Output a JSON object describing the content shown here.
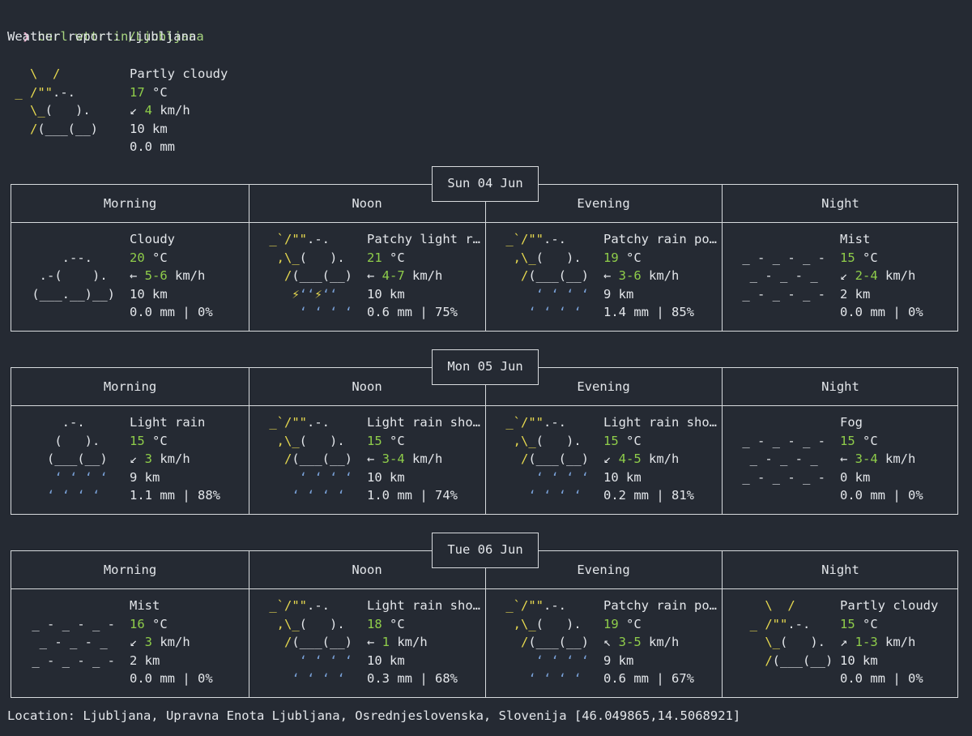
{
  "terminal": {
    "prompt_symbol": "❯",
    "command": "curl wttr.in/Ljubljana",
    "report_title": "Weather report: Ljubljana",
    "location_line": "Location: Ljubljana, Upravna Enota Ljubljana, Osrednjeslovenska, Slovenija [46.049865,14.5068921]"
  },
  "current": {
    "art": [
      [
        [
          "y",
          "   \\  /     "
        ]
      ],
      [
        [
          "y",
          " _ /\"\""
        ],
        [
          "w",
          ".-.   "
        ]
      ],
      [
        [
          "y",
          "   \\_"
        ],
        [
          "w",
          "(   ).  "
        ]
      ],
      [
        [
          "y",
          "   /"
        ],
        [
          "w",
          "(___(__) "
        ]
      ],
      [
        [
          "w",
          "            "
        ]
      ]
    ],
    "condition": "Partly cloudy",
    "temp": "17",
    "temp_unit": " °C",
    "wind_arrow": "↙",
    "wind": "4",
    "wind_unit": " km/h",
    "visibility": "10 km",
    "precip": "0.0 mm"
  },
  "days": [
    {
      "date": "Sun 04 Jun",
      "periods": [
        {
          "name": "Morning",
          "art": [
            [
              [
                "w",
                "            "
              ]
            ],
            [
              [
                "w",
                "     .--.   "
              ]
            ],
            [
              [
                "w",
                "  .-(    ). "
              ]
            ],
            [
              [
                "w",
                " (___.__)__)"
              ]
            ],
            [
              [
                "w",
                "            "
              ]
            ]
          ],
          "condition": "Cloudy",
          "temp": "20",
          "wind_arrow": "←",
          "wind": "5-6",
          "visibility": "10 km",
          "precip": "0.0 mm | 0%"
        },
        {
          "name": "Noon",
          "art": [
            [
              [
                "y",
                " _`/\"\""
              ],
              [
                "w",
                ".-.  "
              ]
            ],
            [
              [
                "y",
                "  ,\\_"
              ],
              [
                "w",
                "(   ). "
              ]
            ],
            [
              [
                "y",
                "   /"
              ],
              [
                "w",
                "(___(__)"
              ]
            ],
            [
              [
                "y",
                "    ⚡"
              ],
              [
                "b",
                "‘‘"
              ],
              [
                "y",
                "⚡"
              ],
              [
                "b",
                "‘‘"
              ]
            ],
            [
              [
                "b",
                "     ‘ ‘ ‘ ‘"
              ]
            ]
          ],
          "condition": "Patchy light r…",
          "temp": "21",
          "wind_arrow": "←",
          "wind": "4-7",
          "visibility": "10 km",
          "precip": "0.6 mm | 75%"
        },
        {
          "name": "Evening",
          "art": [
            [
              [
                "y",
                " _`/\"\""
              ],
              [
                "w",
                ".-.  "
              ]
            ],
            [
              [
                "y",
                "  ,\\_"
              ],
              [
                "w",
                "(   ). "
              ]
            ],
            [
              [
                "y",
                "   /"
              ],
              [
                "w",
                "(___(__)"
              ]
            ],
            [
              [
                "b",
                "     ‘ ‘ ‘ ‘"
              ]
            ],
            [
              [
                "b",
                "    ‘ ‘ ‘ ‘"
              ]
            ]
          ],
          "condition": "Patchy rain po…",
          "temp": "19",
          "wind_arrow": "←",
          "wind": "3-6",
          "visibility": "9 km",
          "precip": "1.4 mm | 85%"
        },
        {
          "name": "Night",
          "art": [
            [
              [
                "w",
                "            "
              ]
            ],
            [
              [
                "w",
                " _ - _ - _ - "
              ]
            ],
            [
              [
                "w",
                "  _ - _ - _ "
              ]
            ],
            [
              [
                "w",
                " _ - _ - _ - "
              ]
            ],
            [
              [
                "w",
                "            "
              ]
            ]
          ],
          "condition": "Mist",
          "temp": "15",
          "wind_arrow": "↙",
          "wind": "2-4",
          "visibility": "2 km",
          "precip": "0.0 mm | 0%"
        }
      ]
    },
    {
      "date": "Mon 05 Jun",
      "periods": [
        {
          "name": "Morning",
          "art": [
            [
              [
                "w",
                "     .-.    "
              ]
            ],
            [
              [
                "w",
                "    (   ).  "
              ]
            ],
            [
              [
                "w",
                "   (___(__) "
              ]
            ],
            [
              [
                "b",
                "    ‘ ‘ ‘ ‘ "
              ]
            ],
            [
              [
                "b",
                "   ‘ ‘ ‘ ‘  "
              ]
            ]
          ],
          "condition": "Light rain",
          "temp": "15",
          "wind_arrow": "↙",
          "wind": "3",
          "visibility": "9 km",
          "precip": "1.1 mm | 88%"
        },
        {
          "name": "Noon",
          "art": [
            [
              [
                "y",
                " _`/\"\""
              ],
              [
                "w",
                ".-.  "
              ]
            ],
            [
              [
                "y",
                "  ,\\_"
              ],
              [
                "w",
                "(   ). "
              ]
            ],
            [
              [
                "y",
                "   /"
              ],
              [
                "w",
                "(___(__)"
              ]
            ],
            [
              [
                "b",
                "     ‘ ‘ ‘ ‘"
              ]
            ],
            [
              [
                "b",
                "    ‘ ‘ ‘ ‘"
              ]
            ]
          ],
          "condition": "Light rain sho…",
          "temp": "15",
          "wind_arrow": "←",
          "wind": "3-4",
          "visibility": "10 km",
          "precip": "1.0 mm | 74%"
        },
        {
          "name": "Evening",
          "art": [
            [
              [
                "y",
                " _`/\"\""
              ],
              [
                "w",
                ".-.  "
              ]
            ],
            [
              [
                "y",
                "  ,\\_"
              ],
              [
                "w",
                "(   ). "
              ]
            ],
            [
              [
                "y",
                "   /"
              ],
              [
                "w",
                "(___(__)"
              ]
            ],
            [
              [
                "b",
                "     ‘ ‘ ‘ ‘"
              ]
            ],
            [
              [
                "b",
                "    ‘ ‘ ‘ ‘"
              ]
            ]
          ],
          "condition": "Light rain sho…",
          "temp": "15",
          "wind_arrow": "↙",
          "wind": "4-5",
          "visibility": "10 km",
          "precip": "0.2 mm | 81%"
        },
        {
          "name": "Night",
          "art": [
            [
              [
                "w",
                "            "
              ]
            ],
            [
              [
                "w",
                " _ - _ - _ - "
              ]
            ],
            [
              [
                "w",
                "  _ - _ - _ "
              ]
            ],
            [
              [
                "w",
                " _ - _ - _ - "
              ]
            ],
            [
              [
                "w",
                "            "
              ]
            ]
          ],
          "condition": "Fog",
          "temp": "15",
          "wind_arrow": "←",
          "wind": "3-4",
          "visibility": "0 km",
          "precip": "0.0 mm | 0%"
        }
      ]
    },
    {
      "date": "Tue 06 Jun",
      "periods": [
        {
          "name": "Morning",
          "art": [
            [
              [
                "w",
                "            "
              ]
            ],
            [
              [
                "w",
                " _ - _ - _ - "
              ]
            ],
            [
              [
                "w",
                "  _ - _ - _ "
              ]
            ],
            [
              [
                "w",
                " _ - _ - _ - "
              ]
            ],
            [
              [
                "w",
                "            "
              ]
            ]
          ],
          "condition": "Mist",
          "temp": "16",
          "wind_arrow": "↙",
          "wind": "3",
          "visibility": "2 km",
          "precip": "0.0 mm | 0%"
        },
        {
          "name": "Noon",
          "art": [
            [
              [
                "y",
                " _`/\"\""
              ],
              [
                "w",
                ".-.  "
              ]
            ],
            [
              [
                "y",
                "  ,\\_"
              ],
              [
                "w",
                "(   ). "
              ]
            ],
            [
              [
                "y",
                "   /"
              ],
              [
                "w",
                "(___(__)"
              ]
            ],
            [
              [
                "b",
                "     ‘ ‘ ‘ ‘"
              ]
            ],
            [
              [
                "b",
                "    ‘ ‘ ‘ ‘"
              ]
            ]
          ],
          "condition": "Light rain sho…",
          "temp": "18",
          "wind_arrow": "←",
          "wind": "1",
          "visibility": "10 km",
          "precip": "0.3 mm | 68%"
        },
        {
          "name": "Evening",
          "art": [
            [
              [
                "y",
                " _`/\"\""
              ],
              [
                "w",
                ".-.  "
              ]
            ],
            [
              [
                "y",
                "  ,\\_"
              ],
              [
                "w",
                "(   ). "
              ]
            ],
            [
              [
                "y",
                "   /"
              ],
              [
                "w",
                "(___(__)"
              ]
            ],
            [
              [
                "b",
                "     ‘ ‘ ‘ ‘"
              ]
            ],
            [
              [
                "b",
                "    ‘ ‘ ‘ ‘"
              ]
            ]
          ],
          "condition": "Patchy rain po…",
          "temp": "19",
          "wind_arrow": "↖",
          "wind": "3-5",
          "visibility": "9 km",
          "precip": "0.6 mm | 67%"
        },
        {
          "name": "Night",
          "art": [
            [
              [
                "y",
                "    \\  /    "
              ]
            ],
            [
              [
                "y",
                "  _ /\"\""
              ],
              [
                "w",
                ".-.  "
              ]
            ],
            [
              [
                "y",
                "    \\_"
              ],
              [
                "w",
                "(   ). "
              ]
            ],
            [
              [
                "y",
                "    /"
              ],
              [
                "w",
                "(___(__)"
              ]
            ],
            [
              [
                "w",
                "            "
              ]
            ]
          ],
          "condition": "Partly cloudy",
          "temp": "15",
          "wind_arrow": "↗",
          "wind": "1-3",
          "visibility": "10 km",
          "precip": "0.0 mm | 0%"
        }
      ]
    }
  ],
  "colors": {
    "background": "#252a33",
    "text": "#e3e6ea",
    "temp_wind": "#8fcd4a",
    "sun": "#e7d94f",
    "rain": "#7aa2d9",
    "prompt": "#e7a4c6",
    "command": "#a7d47f"
  }
}
